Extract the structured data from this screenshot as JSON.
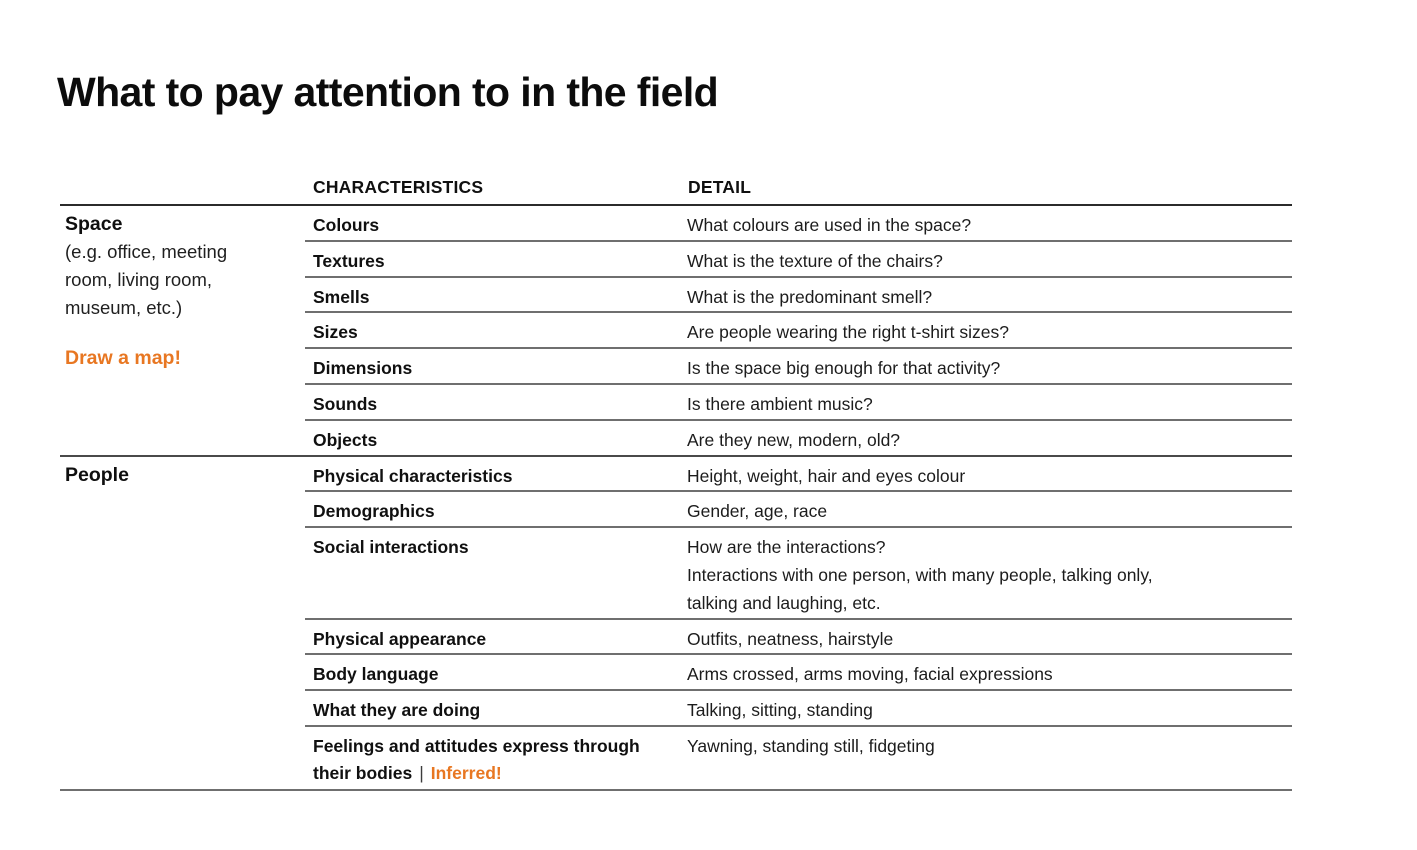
{
  "page": {
    "title": "What to pay attention to in the field"
  },
  "colors": {
    "accent_orange": "#e87722",
    "text_primary": "#101010",
    "header_line": "#2b2b2b",
    "row_line": "#6f6f6f",
    "section_line": "#4a4a4a",
    "background": "#ffffff"
  },
  "table": {
    "headers": {
      "characteristics": "CHARACTERISTICS",
      "detail": "DETAIL"
    },
    "sections": [
      {
        "label": "Space",
        "sublabel": "(e.g. office, meeting room, living room, museum, etc.)",
        "note": "Draw a map!",
        "rows": [
          {
            "characteristic": "Colours",
            "detail": "What colours are used in the space?"
          },
          {
            "characteristic": "Textures",
            "detail": "What is the texture of the chairs?"
          },
          {
            "characteristic": "Smells",
            "detail": "What is the predominant smell?"
          },
          {
            "characteristic": "Sizes",
            "detail": "Are people wearing the right t-shirt sizes?"
          },
          {
            "characteristic": "Dimensions",
            "detail": "Is the space big enough for that activity?"
          },
          {
            "characteristic": "Sounds",
            "detail": "Is there ambient music?"
          },
          {
            "characteristic": "Objects",
            "detail": "Are they new, modern, old?"
          }
        ]
      },
      {
        "label": "People",
        "rows": [
          {
            "characteristic": "Physical characteristics",
            "detail": "Height, weight, hair and eyes colour"
          },
          {
            "characteristic": "Demographics",
            "detail": "Gender, age, race"
          },
          {
            "characteristic": "Social interactions",
            "detail": "How are the interactions?\nInteractions with one person, with many people, talking only,\ntalking and laughing, etc."
          },
          {
            "characteristic": "Physical appearance",
            "detail": "Outfits, neatness, hairstyle"
          },
          {
            "characteristic": "Body language",
            "detail": "Arms crossed, arms moving, facial expressions"
          },
          {
            "characteristic": "What they are doing",
            "detail": "Talking, sitting, standing"
          },
          {
            "characteristic": "Feelings and attitudes express through their bodies",
            "separator": "|",
            "note": "Inferred!",
            "detail": "Yawning, standing still, fidgeting"
          }
        ]
      }
    ]
  }
}
